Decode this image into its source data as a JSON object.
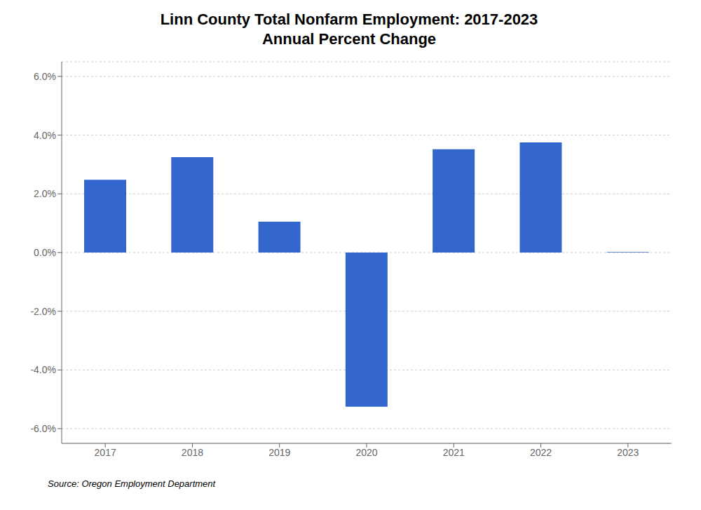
{
  "chart_data": {
    "type": "bar",
    "title": "Linn County Total Nonfarm Employment: 2017-2023\nAnnual Percent Change",
    "categories": [
      "2017",
      "2018",
      "2019",
      "2020",
      "2021",
      "2022",
      "2023"
    ],
    "values": [
      2.48,
      3.25,
      1.05,
      -5.25,
      3.52,
      3.75,
      0.02
    ],
    "color": "#3366cc",
    "ylim": [
      -6.5,
      6.5
    ],
    "yticks": [
      {
        "value": -6.0,
        "label": "-6.0%"
      },
      {
        "value": -4.0,
        "label": "-4.0%"
      },
      {
        "value": -2.0,
        "label": "-2.0%"
      },
      {
        "value": 0.0,
        "label": "0.0%"
      },
      {
        "value": 2.0,
        "label": "2.0%"
      },
      {
        "value": 4.0,
        "label": "4.0%"
      },
      {
        "value": 6.0,
        "label": "6.0%"
      }
    ],
    "grid": true,
    "annotations": [
      "Source: Oregon Employment Department"
    ]
  }
}
